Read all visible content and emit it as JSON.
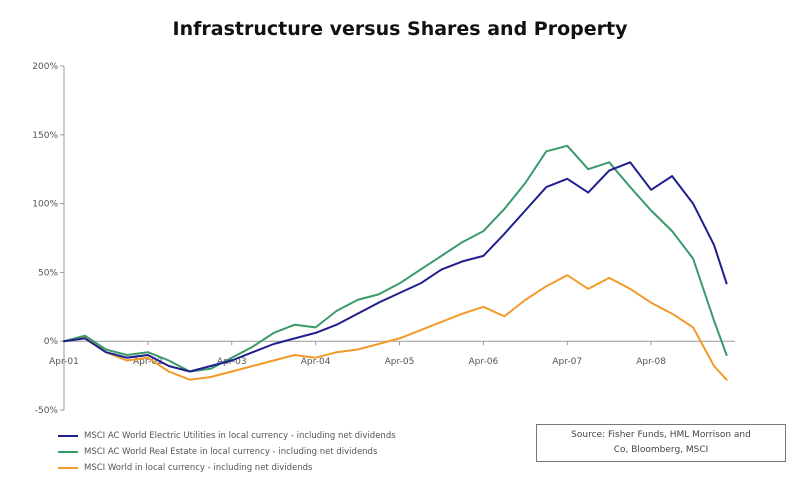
{
  "chart_data": {
    "type": "line",
    "title": "Infrastructure versus Shares and Property",
    "xlabel": "",
    "ylabel": "",
    "ylim": [
      -50,
      200
    ],
    "y_ticks": [
      "200%",
      "150%",
      "100%",
      "50%",
      "0%",
      "-50%"
    ],
    "y_tick_values": [
      200,
      150,
      100,
      50,
      0,
      -50
    ],
    "x_ticks": [
      "Apr-01",
      "Apr-02",
      "Apr-03",
      "Apr-04",
      "Apr-05",
      "Apr-06",
      "Apr-07",
      "Apr-08"
    ],
    "x_tick_values": [
      2001.25,
      2002.25,
      2003.25,
      2004.25,
      2005.25,
      2006.25,
      2007.25,
      2008.25
    ],
    "xlim": [
      2001.25,
      2009.25
    ],
    "grid": false,
    "legend_position": "bottom-left",
    "series": [
      {
        "name": "MSCI AC World Electric Utilities in local currency - including net dividends",
        "color": "#1f1f8f",
        "x": [
          2001.25,
          2001.5,
          2001.75,
          2002.0,
          2002.25,
          2002.5,
          2002.75,
          2003.0,
          2003.25,
          2003.5,
          2003.75,
          2004.0,
          2004.25,
          2004.5,
          2004.75,
          2005.0,
          2005.25,
          2005.5,
          2005.75,
          2006.0,
          2006.25,
          2006.5,
          2006.75,
          2007.0,
          2007.25,
          2007.5,
          2007.75,
          2008.0,
          2008.25,
          2008.5,
          2008.75,
          2009.0,
          2009.15
        ],
        "y": [
          0,
          2,
          -8,
          -12,
          -10,
          -18,
          -22,
          -18,
          -14,
          -8,
          -2,
          2,
          6,
          12,
          20,
          28,
          35,
          42,
          52,
          58,
          62,
          78,
          95,
          112,
          118,
          108,
          124,
          130,
          110,
          120,
          100,
          70,
          42
        ]
      },
      {
        "name": "MSCI AC World Real Estate in local currency - including net dividends",
        "color": "#3a9a6a",
        "x": [
          2001.25,
          2001.5,
          2001.75,
          2002.0,
          2002.25,
          2002.5,
          2002.75,
          2003.0,
          2003.25,
          2003.5,
          2003.75,
          2004.0,
          2004.25,
          2004.5,
          2004.75,
          2005.0,
          2005.25,
          2005.5,
          2005.75,
          2006.0,
          2006.25,
          2006.5,
          2006.75,
          2007.0,
          2007.25,
          2007.5,
          2007.75,
          2008.0,
          2008.25,
          2008.5,
          2008.75,
          2009.0,
          2009.15
        ],
        "y": [
          0,
          4,
          -6,
          -10,
          -8,
          -14,
          -22,
          -20,
          -12,
          -4,
          6,
          12,
          10,
          22,
          30,
          34,
          42,
          52,
          62,
          72,
          80,
          96,
          115,
          138,
          142,
          125,
          130,
          112,
          95,
          80,
          60,
          15,
          -10
        ]
      },
      {
        "name": "MSCI World in local currency - including net dividends",
        "color": "#f39a2a",
        "x": [
          2001.25,
          2001.5,
          2001.75,
          2002.0,
          2002.25,
          2002.5,
          2002.75,
          2003.0,
          2003.25,
          2003.5,
          2003.75,
          2004.0,
          2004.25,
          2004.5,
          2004.75,
          2005.0,
          2005.25,
          2005.5,
          2005.75,
          2006.0,
          2006.25,
          2006.5,
          2006.75,
          2007.0,
          2007.25,
          2007.5,
          2007.75,
          2008.0,
          2008.25,
          2008.5,
          2008.75,
          2009.0,
          2009.15
        ],
        "y": [
          0,
          3,
          -8,
          -14,
          -12,
          -22,
          -28,
          -26,
          -22,
          -18,
          -14,
          -10,
          -12,
          -8,
          -6,
          -2,
          2,
          8,
          14,
          20,
          25,
          18,
          30,
          40,
          48,
          38,
          46,
          38,
          28,
          20,
          10,
          -18,
          -28
        ]
      }
    ]
  },
  "source": {
    "line1": "Source: Fisher Funds, HML Morrison and",
    "line2": "Co, Bloomberg, MSCI"
  }
}
